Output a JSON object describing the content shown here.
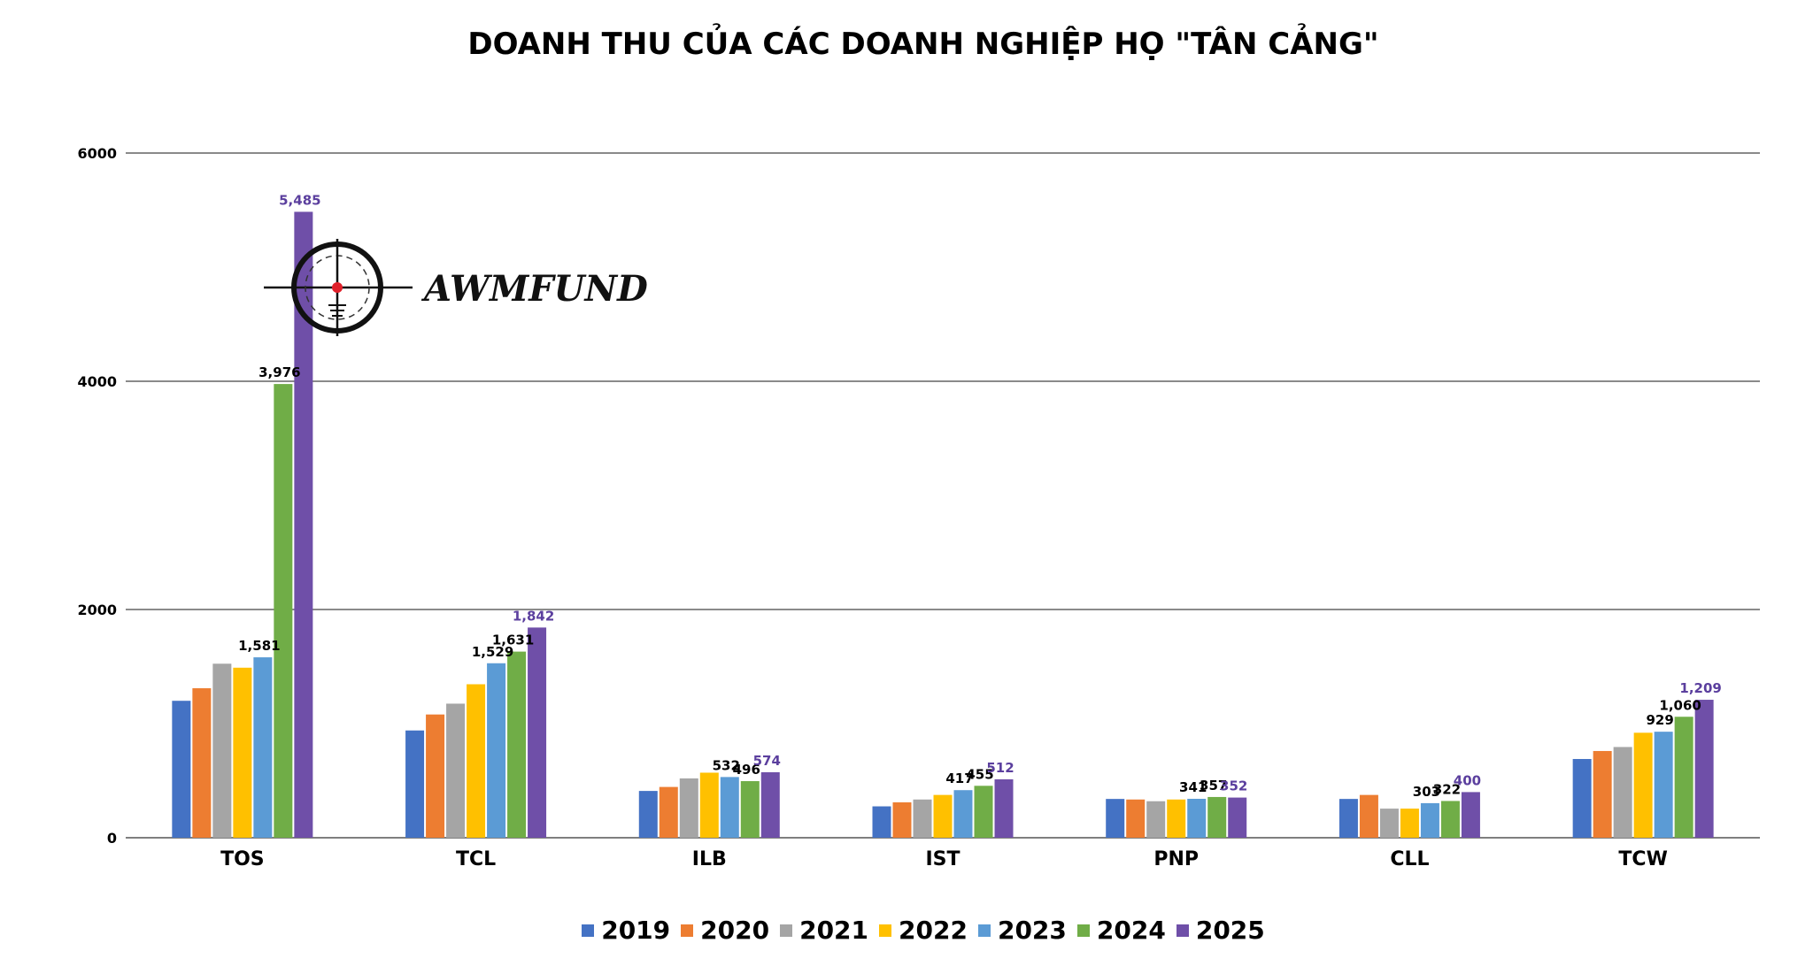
{
  "chart_data": {
    "type": "bar",
    "title": "DOANH THU CỦA CÁC DOANH NGHIỆP HỌ \"TÂN CẢNG\"",
    "xlabel": "",
    "ylabel": "",
    "ylim": [
      0,
      6000
    ],
    "yticks": [
      "0",
      "2000",
      "4000",
      "6000"
    ],
    "grid": true,
    "legend_position": "bottom",
    "categories": [
      "TOS",
      "TCL",
      "ILB",
      "IST",
      "PNP",
      "CLL",
      "TCW"
    ],
    "series": [
      {
        "name": "2019",
        "color": "#4472C4",
        "values": [
          1200,
          940,
          410,
          275,
          340,
          340,
          690
        ]
      },
      {
        "name": "2020",
        "color": "#ED7D31",
        "values": [
          1310,
          1080,
          445,
          310,
          335,
          375,
          760
        ]
      },
      {
        "name": "2021",
        "color": "#A5A5A5",
        "values": [
          1525,
          1175,
          520,
          335,
          320,
          255,
          795
        ]
      },
      {
        "name": "2022",
        "color": "#FFC000",
        "values": [
          1490,
          1345,
          570,
          375,
          335,
          255,
          920
        ]
      },
      {
        "name": "2023",
        "color": "#5B9BD5",
        "values": [
          1581,
          1529,
          532,
          417,
          341,
          303,
          929
        ]
      },
      {
        "name": "2024",
        "color": "#70AD47",
        "values": [
          3976,
          1631,
          496,
          455,
          357,
          322,
          1060
        ]
      },
      {
        "name": "2025",
        "color": "#6F4FA8",
        "values": [
          5485,
          1842,
          574,
          512,
          352,
          400,
          1209
        ]
      }
    ],
    "data_labels": [
      {
        "category": 0,
        "series": 4,
        "text": "1,581",
        "color": "#000000"
      },
      {
        "category": 0,
        "series": 5,
        "text": "3,976",
        "color": "#000000"
      },
      {
        "category": 0,
        "series": 6,
        "text": "5,485",
        "color": "#5B3F9E"
      },
      {
        "category": 1,
        "series": 4,
        "text": "1,529",
        "color": "#000000"
      },
      {
        "category": 1,
        "series": 5,
        "text": "1,631",
        "color": "#000000"
      },
      {
        "category": 1,
        "series": 6,
        "text": "1,842",
        "color": "#5B3F9E"
      },
      {
        "category": 2,
        "series": 4,
        "text": "532",
        "color": "#000000"
      },
      {
        "category": 2,
        "series": 5,
        "text": "496",
        "color": "#000000"
      },
      {
        "category": 2,
        "series": 6,
        "text": "574",
        "color": "#5B3F9E"
      },
      {
        "category": 3,
        "series": 4,
        "text": "417",
        "color": "#000000"
      },
      {
        "category": 3,
        "series": 5,
        "text": "455",
        "color": "#000000"
      },
      {
        "category": 3,
        "series": 6,
        "text": "512",
        "color": "#5B3F9E"
      },
      {
        "category": 4,
        "series": 4,
        "text": "341",
        "color": "#000000"
      },
      {
        "category": 4,
        "series": 5,
        "text": "357",
        "color": "#000000"
      },
      {
        "category": 4,
        "series": 6,
        "text": "352",
        "color": "#5B3F9E"
      },
      {
        "category": 5,
        "series": 4,
        "text": "303",
        "color": "#000000"
      },
      {
        "category": 5,
        "series": 5,
        "text": "322",
        "color": "#000000"
      },
      {
        "category": 5,
        "series": 6,
        "text": "400",
        "color": "#5B3F9E"
      },
      {
        "category": 6,
        "series": 4,
        "text": "929",
        "color": "#000000"
      },
      {
        "category": 6,
        "series": 5,
        "text": "1,060",
        "color": "#000000"
      },
      {
        "category": 6,
        "series": 6,
        "text": "1,209",
        "color": "#5B3F9E"
      }
    ]
  },
  "watermark": {
    "text": "AWMFUND",
    "icon": "crosshair-scope-icon",
    "accent_color": "#E0202A"
  }
}
